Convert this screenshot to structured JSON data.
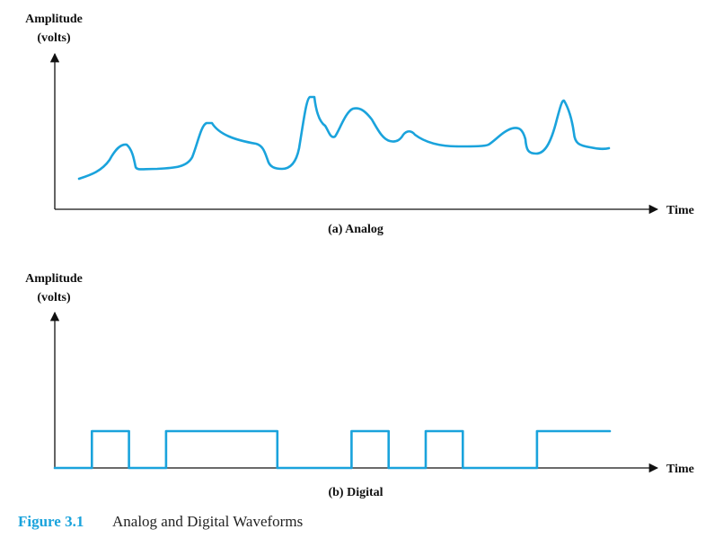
{
  "colors": {
    "waveform": "#1aa3dc",
    "figure_label": "#1aa3dc",
    "axis": "#111111"
  },
  "panel_a": {
    "y_label_line1": "Amplitude",
    "y_label_line2": "(volts)",
    "x_label": "Time",
    "caption": "(a) Analog"
  },
  "panel_b": {
    "y_label_line1": "Amplitude",
    "y_label_line2": "(volts)",
    "x_label": "Time",
    "caption": "(b) Digital",
    "levels": [
      0,
      1,
      0,
      1,
      1,
      1,
      0,
      0,
      1,
      0,
      1,
      0,
      0,
      1
    ]
  },
  "figure": {
    "number": "Figure 3.1",
    "title": "Analog and Digital Waveforms"
  }
}
